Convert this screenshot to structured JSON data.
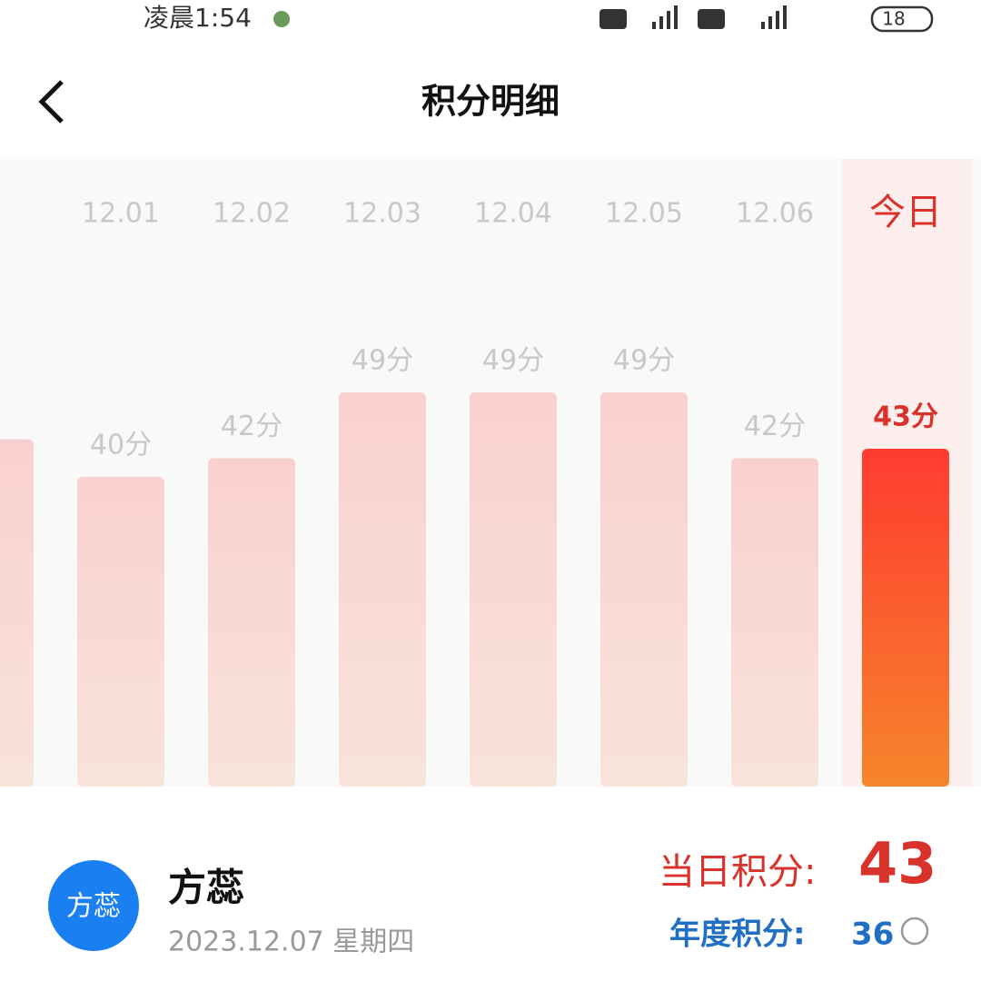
{
  "status_bar": {
    "time": "凌晨1:54",
    "battery": "18"
  },
  "header": {
    "title": "积分明细"
  },
  "chart_data": {
    "type": "bar",
    "categories": [
      null,
      "12.01",
      "12.02",
      "12.03",
      "12.04",
      "12.05",
      "12.06",
      "今日"
    ],
    "values": [
      44,
      40,
      42,
      49,
      49,
      49,
      42,
      43
    ],
    "value_labels": [
      null,
      "40分",
      "42分",
      "49分",
      "49分",
      "49分",
      "42分",
      "43分"
    ],
    "ylim": [
      7,
      52
    ]
  },
  "user": {
    "avatar": "方蕊",
    "name": "方蕊",
    "date": "2023.12.07 星期四"
  },
  "summary": {
    "daily_label": "当日积分:",
    "daily_value": "43",
    "annual_label": "年度积分:",
    "annual_value": "36"
  }
}
